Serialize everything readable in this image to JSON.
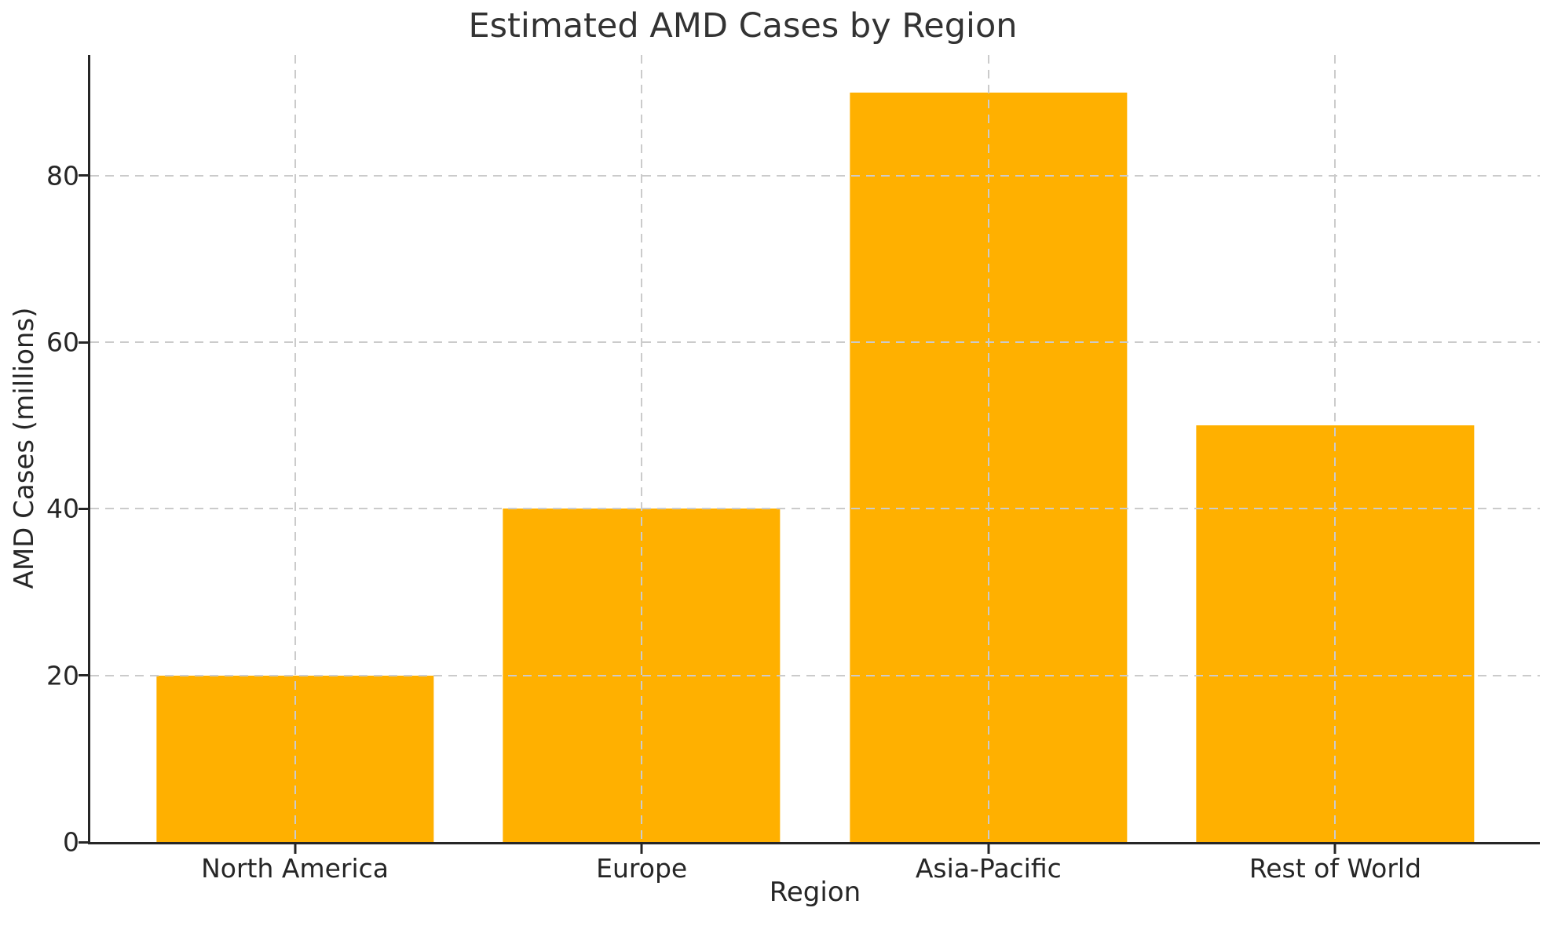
{
  "chart_data": {
    "type": "bar",
    "title": "Estimated AMD Cases by Region",
    "xlabel": "Region",
    "ylabel": "AMD Cases (millions)",
    "categories": [
      "North America",
      "Europe",
      "Asia-Pacific",
      "Rest of World"
    ],
    "values": [
      20,
      40,
      90,
      50
    ],
    "yticks": [
      0,
      20,
      40,
      60,
      80
    ],
    "ylim": [
      0,
      94.5
    ],
    "xlim": [
      -0.59,
      3.59
    ],
    "bar_width_units": 0.8,
    "bar_color": "#FFB000",
    "grid_color": "#cbcbcb",
    "axis_color": "#262626",
    "grid": "both, dashed, drawn above bars",
    "legend_position": "none"
  }
}
